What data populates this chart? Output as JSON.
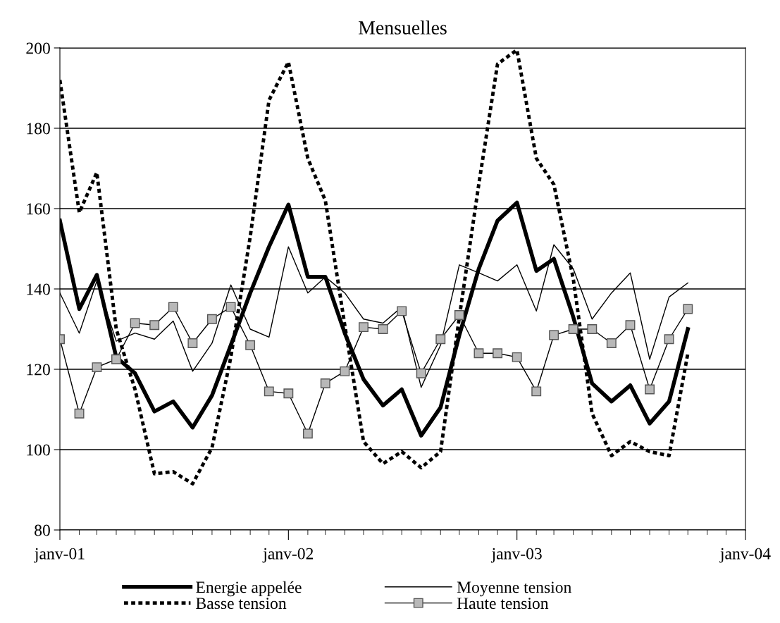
{
  "chart_data": {
    "type": "line",
    "title": "Mensuelles",
    "x": [
      "2001-01",
      "2001-02",
      "2001-03",
      "2001-04",
      "2001-05",
      "2001-06",
      "2001-07",
      "2001-08",
      "2001-09",
      "2001-10",
      "2001-11",
      "2001-12",
      "2002-01",
      "2002-02",
      "2002-03",
      "2002-04",
      "2002-05",
      "2002-06",
      "2002-07",
      "2002-08",
      "2002-09",
      "2002-10",
      "2002-11",
      "2002-12",
      "2003-01",
      "2003-02",
      "2003-03",
      "2003-04",
      "2003-05",
      "2003-06",
      "2003-07",
      "2003-08",
      "2003-09",
      "2003-10"
    ],
    "series": [
      {
        "name": "Energie appelée",
        "color": "#000000",
        "line_style": "solid",
        "marker": "none",
        "values": [
          157,
          135,
          143.5,
          123,
          119,
          109.5,
          112,
          105.5,
          113.5,
          126,
          139,
          150.5,
          161,
          143,
          143,
          129,
          117.5,
          111,
          115,
          103.5,
          110.5,
          128.5,
          145,
          157,
          161.5,
          144.5,
          147.5,
          133,
          116.5,
          112,
          116,
          106.5,
          112,
          130
        ]
      },
      {
        "name": "Basse tension",
        "color": "#000000",
        "line_style": "dotted",
        "marker": "none",
        "values": [
          192,
          159,
          169,
          130,
          115,
          94,
          94.5,
          91.5,
          100.5,
          123,
          153,
          187,
          196.5,
          172.5,
          162,
          131,
          102,
          96.5,
          99.5,
          95.5,
          99.5,
          133,
          166,
          196,
          199.5,
          172.5,
          166,
          142.5,
          109,
          98.5,
          102,
          99.5,
          98.5,
          124
        ]
      },
      {
        "name": "Moyenne tension",
        "color": "#000000",
        "line_style": "solid",
        "marker": "none",
        "values": [
          139,
          129,
          142,
          127,
          129,
          127.5,
          132,
          119.5,
          126.5,
          141,
          130,
          128,
          150.5,
          139,
          143,
          139,
          132.5,
          131.5,
          135.5,
          115.5,
          126,
          146,
          144,
          142,
          146,
          134.5,
          151,
          145,
          132.5,
          139,
          144,
          122.5,
          138,
          141.5
        ]
      },
      {
        "name": "Haute tension",
        "color": "#000000",
        "line_style": "solid",
        "marker": "square",
        "values": [
          127.5,
          109,
          120.5,
          122.5,
          131.5,
          131,
          135.5,
          126.5,
          132.5,
          135.5,
          126,
          114.5,
          114,
          104,
          116.5,
          119.5,
          130.5,
          130,
          134.5,
          119,
          127.5,
          133.5,
          124,
          124,
          123,
          114.5,
          128.5,
          130,
          130,
          126.5,
          131,
          115,
          127.5,
          135
        ]
      }
    ],
    "xlim": [
      "2001-01",
      "2004-01"
    ],
    "xticks": [
      {
        "value": "2001-01",
        "label": "janv-01"
      },
      {
        "value": "2002-01",
        "label": "janv-02"
      },
      {
        "value": "2003-01",
        "label": "janv-03"
      },
      {
        "value": "2004-01",
        "label": "janv-04"
      }
    ],
    "ylim": [
      80,
      200
    ],
    "yticks": [
      80,
      100,
      120,
      140,
      160,
      180,
      200
    ],
    "grid": "y",
    "legend": "bottom"
  }
}
